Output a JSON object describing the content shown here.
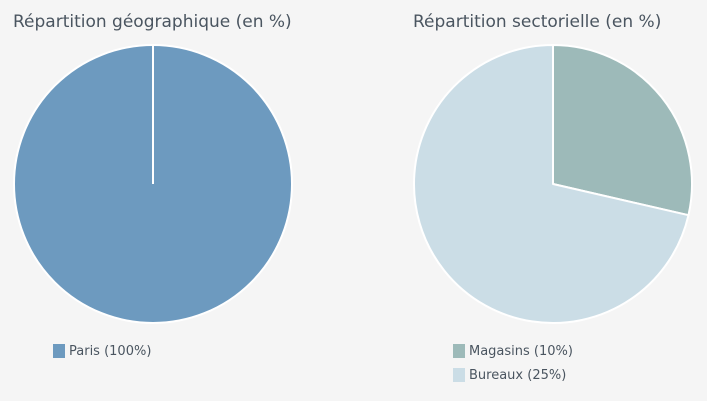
{
  "chart_data": [
    {
      "type": "pie",
      "title": "Répartition géographique (en %)",
      "slices": [
        {
          "label": "Paris (100%)",
          "value": 100,
          "color": "#6d9abf"
        }
      ],
      "legend_position": "bottom-left"
    },
    {
      "type": "pie",
      "title": "Répartition sectorielle (en %)",
      "slices": [
        {
          "label": "Magasins (10%)",
          "value": 28.6,
          "color": "#9dbab9"
        },
        {
          "label": "Bureaux (25%)",
          "value": 71.4,
          "color": "#cbdde6"
        }
      ],
      "legend_position": "bottom-left"
    }
  ]
}
